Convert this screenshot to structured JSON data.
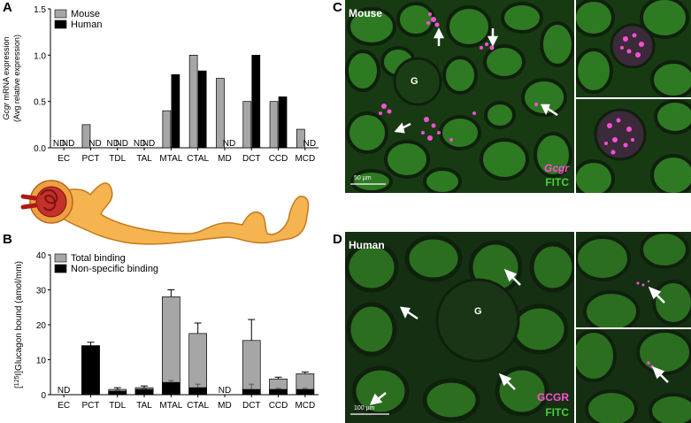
{
  "panels": {
    "A": "A",
    "B": "B",
    "C": "C",
    "D": "D"
  },
  "chart_data": [
    {
      "type": "bar",
      "panel": "A",
      "ylabel_line1": "Gcgr mRNA expression",
      "ylabel_line2": "(Avg relative expression)",
      "ylim": [
        0,
        1.5
      ],
      "yticks": [
        "0.0",
        "0.5",
        "1.0",
        "1.5"
      ],
      "categories": [
        "EC",
        "PCT",
        "TDL",
        "TAL",
        "MTAL",
        "CTAL",
        "MD",
        "DCT",
        "CCD",
        "MCD"
      ],
      "series": [
        {
          "name": "Mouse",
          "color": "#a6a6a6",
          "values": [
            null,
            0.25,
            null,
            null,
            0.4,
            1.0,
            0.75,
            0.5,
            0.5,
            0.2
          ]
        },
        {
          "name": "Human",
          "color": "#000000",
          "values": [
            null,
            null,
            null,
            null,
            0.79,
            0.83,
            null,
            1.0,
            0.55,
            null
          ]
        }
      ],
      "nd_label": "ND",
      "nd_marks": [
        {
          "category": 0,
          "series": 0
        },
        {
          "category": 0,
          "series": 1
        },
        {
          "category": 1,
          "series": 1
        },
        {
          "category": 2,
          "series": 0
        },
        {
          "category": 2,
          "series": 1
        },
        {
          "category": 3,
          "series": 0
        },
        {
          "category": 3,
          "series": 1
        },
        {
          "category": 6,
          "series": 1
        },
        {
          "category": 9,
          "series": 1
        }
      ],
      "legend_position": "top-left"
    },
    {
      "type": "bar",
      "panel": "B",
      "ylabel_sup": "[125I]",
      "ylabel_main": "Glucagon bound (amol/mm)",
      "ylim": [
        0,
        40
      ],
      "yticks": [
        "0",
        "10",
        "20",
        "30",
        "40"
      ],
      "categories": [
        "EC",
        "PCT",
        "TDL",
        "TAL",
        "MTAL",
        "CTAL",
        "MD",
        "DCT",
        "CCD",
        "MCD"
      ],
      "series": [
        {
          "name": "Total binding",
          "color": "#a6a6a6",
          "values": [
            null,
            14.0,
            1.5,
            2.0,
            28.0,
            17.5,
            null,
            15.5,
            4.5,
            6.0
          ],
          "errors": [
            null,
            1.0,
            0.5,
            0.5,
            2.0,
            3.0,
            null,
            6.0,
            0.5,
            0.5
          ]
        },
        {
          "name": "Non-specific binding",
          "color": "#000000",
          "values": [
            null,
            14.0,
            1.0,
            1.5,
            3.5,
            2.0,
            null,
            1.5,
            1.5,
            1.5
          ],
          "errors": [
            null,
            0.0,
            0.3,
            0.3,
            0.5,
            1.0,
            null,
            1.5,
            0.3,
            0.3
          ]
        }
      ],
      "nd_label": "ND",
      "nd_categories": [
        0,
        6
      ],
      "legend_position": "top-left"
    }
  ],
  "micrographs": {
    "mouse_label": "Mouse",
    "human_label": "Human",
    "mouse_marker_label": "Gcgr",
    "human_marker_label": "GCGR",
    "counterstain_label": "FITC",
    "glomerulus_label": "G",
    "scale_mouse": "50 µm",
    "scale_human": "100 µm",
    "colors": {
      "tissue": "#2e7a22",
      "dark": "#0f200c",
      "signal": "#ff4fd8",
      "counterstain_text": "#49d13a"
    }
  }
}
